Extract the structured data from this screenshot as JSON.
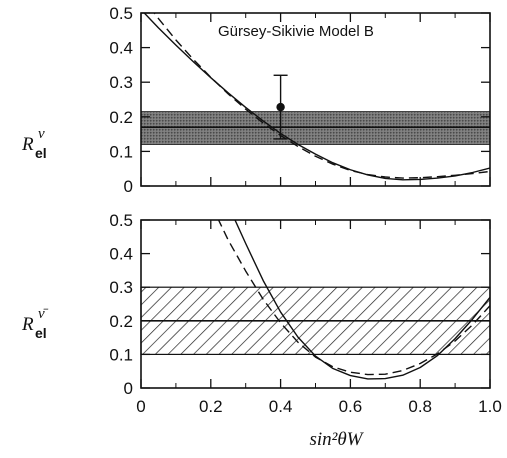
{
  "chart_data": [
    {
      "type": "line",
      "panel": "top",
      "annotation": "Gürsey-Sikivie Model B",
      "ylabel": {
        "main": "R",
        "sub": "el",
        "sup": "ν"
      },
      "xlim": [
        0,
        1
      ],
      "ylim": [
        0,
        0.5
      ],
      "xticks": [
        0,
        0.2,
        0.4,
        0.6,
        0.8,
        1.0
      ],
      "yticks": [
        "0",
        "0.1",
        "0.2",
        "0.3",
        "0.4",
        "0.5"
      ],
      "band": {
        "center": 0.17,
        "low": 0.12,
        "high": 0.215,
        "style": "dotted-fill"
      },
      "series": [
        {
          "style": "solid",
          "x": [
            0,
            0.05,
            0.1,
            0.15,
            0.2,
            0.25,
            0.3,
            0.35,
            0.4,
            0.45,
            0.5,
            0.55,
            0.6,
            0.65,
            0.7,
            0.75,
            0.8,
            0.85,
            0.9,
            0.95,
            1.0
          ],
          "y": [
            0.51,
            0.457,
            0.407,
            0.359,
            0.313,
            0.269,
            0.227,
            0.188,
            0.152,
            0.12,
            0.092,
            0.067,
            0.047,
            0.032,
            0.022,
            0.018,
            0.019,
            0.023,
            0.029,
            0.039,
            0.052
          ]
        },
        {
          "style": "dashed",
          "x": [
            0,
            0.05,
            0.1,
            0.15,
            0.2,
            0.25,
            0.3,
            0.35,
            0.4,
            0.45,
            0.5,
            0.55,
            0.6,
            0.65,
            0.7,
            0.75,
            0.8,
            0.85,
            0.9,
            0.95,
            1.0
          ],
          "y": [
            0.55,
            0.484,
            0.422,
            0.366,
            0.314,
            0.266,
            0.222,
            0.182,
            0.146,
            0.114,
            0.086,
            0.063,
            0.045,
            0.033,
            0.026,
            0.023,
            0.024,
            0.027,
            0.031,
            0.036,
            0.042
          ]
        }
      ],
      "points": [
        {
          "x": 0.4,
          "y": 0.228,
          "yerr_plus": 0.092,
          "yerr_minus": 0.092
        }
      ],
      "grid": false
    },
    {
      "type": "line",
      "panel": "bottom",
      "ylabel": {
        "main": "R",
        "sub": "el",
        "sup": "ν̄"
      },
      "xlabel": "sin²θW",
      "xlim": [
        0,
        1
      ],
      "ylim": [
        0,
        0.5
      ],
      "xticks": [
        0,
        0.2,
        0.4,
        0.6,
        0.8,
        1.0
      ],
      "xticklabels": [
        "0",
        "0.2",
        "0.4",
        "0.6",
        "0.8",
        "1.0"
      ],
      "yticks": [
        "0",
        "0.1",
        "0.2",
        "0.3",
        "0.4",
        "0.5"
      ],
      "band": {
        "center": 0.2,
        "low": 0.1,
        "high": 0.3,
        "style": "hatched"
      },
      "series": [
        {
          "style": "solid",
          "x": [
            0.265,
            0.3,
            0.35,
            0.4,
            0.45,
            0.5,
            0.55,
            0.6,
            0.65,
            0.7,
            0.75,
            0.8,
            0.85,
            0.9,
            0.95,
            1.0
          ],
          "y": [
            0.51,
            0.43,
            0.32,
            0.226,
            0.151,
            0.095,
            0.058,
            0.037,
            0.027,
            0.028,
            0.038,
            0.061,
            0.097,
            0.147,
            0.205,
            0.27
          ]
        },
        {
          "style": "dashed",
          "x": [
            0.22,
            0.25,
            0.3,
            0.35,
            0.4,
            0.45,
            0.5,
            0.55,
            0.6,
            0.65,
            0.7,
            0.75,
            0.8,
            0.85,
            0.9,
            0.95,
            1.0
          ],
          "y": [
            0.505,
            0.44,
            0.348,
            0.264,
            0.194,
            0.136,
            0.092,
            0.063,
            0.047,
            0.04,
            0.041,
            0.052,
            0.073,
            0.102,
            0.14,
            0.188,
            0.245
          ]
        }
      ],
      "grid": false
    }
  ]
}
